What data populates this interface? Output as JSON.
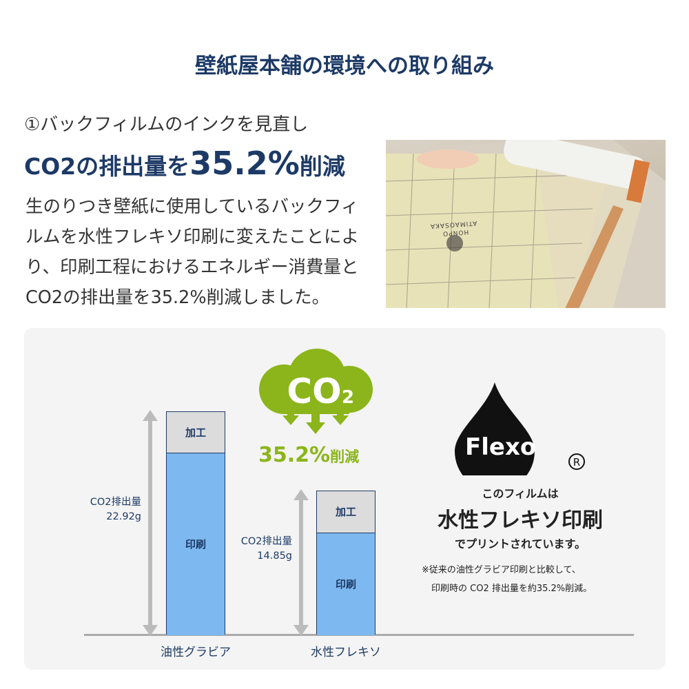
{
  "title": "壁紙屋本舗の環境への取り組み",
  "section": {
    "subtitle": "①バックフィルムのインクを見直し",
    "headline_pre": "CO2の排出量を",
    "headline_value": "35.2%",
    "headline_post": "削減",
    "body": "生のりつき壁紙に使用しているバックフィルムを水性フレキソ印刷に変えたことにより、印刷工程におけるエネルギー消費量とCO2の排出量を35.2%削減しました。"
  },
  "photo": {
    "alt_texts": [
      "ATIMAOSAKA",
      "HONPO"
    ]
  },
  "badge": {
    "cloud_text": "CO",
    "cloud_sub": "2",
    "reduction": "35.2%",
    "reduction_suffix": "削減",
    "color": "#8bb51a"
  },
  "flexo": {
    "logo": "Flexo",
    "registered": "®",
    "line1": "このフィルムは",
    "line2": "水性フレキソ印刷",
    "line3": "でプリントされています。",
    "note1": "※従来の油性グラビア印刷と比較して、",
    "note2": "印刷時の CO2 排出量を約35.2%削減。"
  },
  "chart_data": {
    "type": "bar",
    "stacked": true,
    "categories": [
      "油性グラビア",
      "水性フレキソ"
    ],
    "totals_label": [
      "CO2排出量",
      "CO2排出量"
    ],
    "totals": [
      "22.92g",
      "14.85g"
    ],
    "series": [
      {
        "name": "印刷",
        "values": [
          18.7,
          10.5
        ],
        "color": "#7db8f0"
      },
      {
        "name": "加工",
        "values": [
          4.2,
          4.3
        ],
        "color": "#dcdcdc"
      }
    ]
  }
}
